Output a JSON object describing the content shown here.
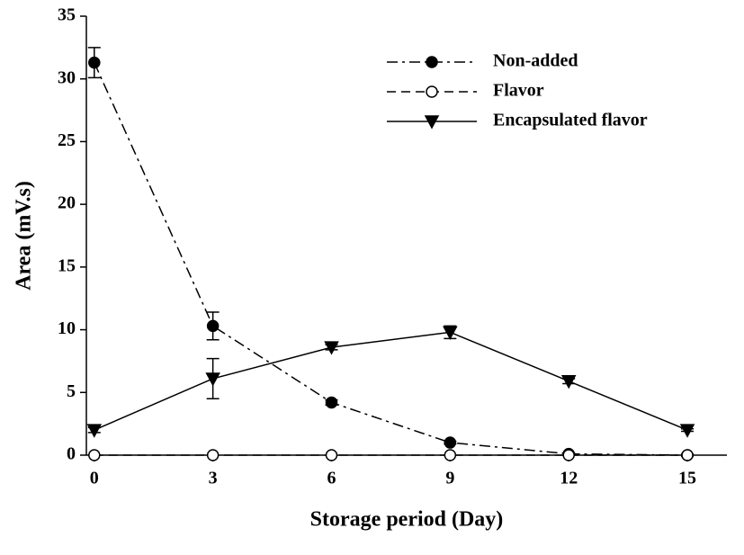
{
  "chart_data": {
    "type": "line",
    "xlabel": "Storage period (Day)",
    "ylabel": "Area (mV.s)",
    "x": [
      0,
      3,
      6,
      9,
      12,
      15
    ],
    "series": [
      {
        "name": "Non-added",
        "color": "#000000",
        "line_style": "dashdot",
        "marker": "filled-circle",
        "values": [
          31.3,
          10.3,
          4.2,
          1.0,
          0.1,
          0
        ],
        "errors": [
          1.2,
          1.1,
          0.2,
          0.1,
          0.1,
          0.1
        ]
      },
      {
        "name": "Flavor",
        "color": "#000000",
        "line_style": "dashed",
        "marker": "open-circle",
        "values": [
          0,
          0,
          0,
          0,
          0,
          0
        ]
      },
      {
        "name": "Encapsulated flavor",
        "color": "#000000",
        "line_style": "solid",
        "marker": "triangle-down",
        "values": [
          2.0,
          6.1,
          8.6,
          9.8,
          5.9,
          2.0
        ],
        "errors": [
          0.2,
          1.6,
          0.2,
          0.5,
          0.2,
          0.1
        ]
      }
    ],
    "xlim": [
      -0.2,
      16
    ],
    "ylim": [
      0,
      35
    ],
    "xticks": [
      0,
      3,
      6,
      9,
      12,
      15
    ],
    "yticks": [
      0,
      5,
      10,
      15,
      20,
      25,
      30,
      35
    ],
    "grid": false,
    "legend": "upper right"
  }
}
